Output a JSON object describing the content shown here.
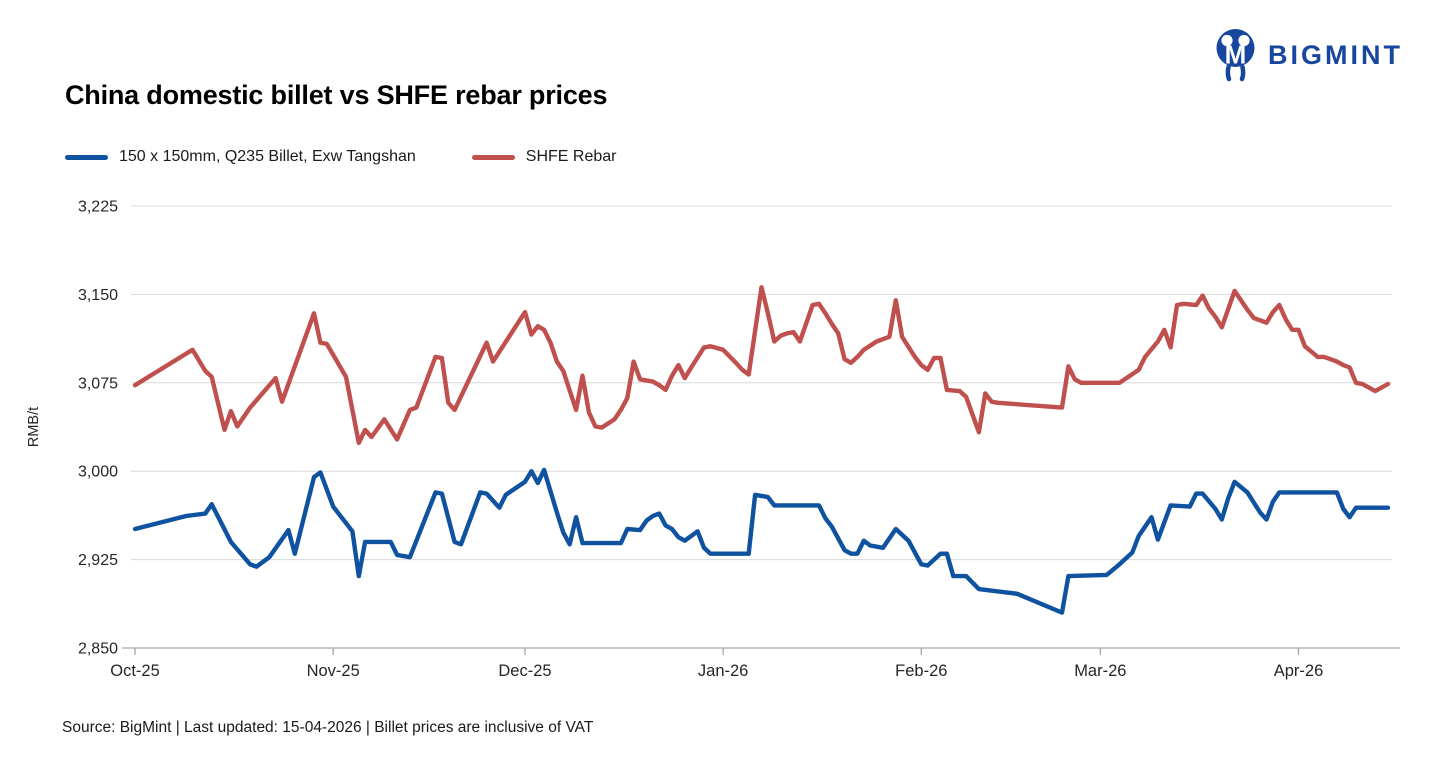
{
  "logo": {
    "text": "BIGMINT",
    "color": "#17469e"
  },
  "header": {
    "title": "China domestic billet vs SHFE rebar prices"
  },
  "legend": [
    {
      "label": "150 x 150mm, Q235 Billet, Exw Tangshan",
      "color": "#0f52a0"
    },
    {
      "label": "SHFE Rebar",
      "color": "#c0504d"
    }
  ],
  "footer": {
    "source_note": "Source: BigMint | Last updated: 15-04-2026 | Billet prices are inclusive of VAT"
  },
  "chart_data": {
    "type": "line",
    "title": "China domestic billet vs SHFE rebar prices",
    "xlabel": "",
    "ylabel": "RMB/t",
    "ylim": [
      2850,
      3225
    ],
    "yticks": [
      2850,
      2925,
      3000,
      3075,
      3150,
      3225
    ],
    "grid": "horizontal",
    "legend_position": "top-left",
    "x_axis": {
      "unit": "days since 01-10-2025",
      "total_days": 196,
      "ticks": [
        {
          "day": 0,
          "label": "Oct-25"
        },
        {
          "day": 31,
          "label": "Nov-25"
        },
        {
          "day": 61,
          "label": "Dec-25"
        },
        {
          "day": 92,
          "label": "Jan-26"
        },
        {
          "day": 123,
          "label": "Feb-26"
        },
        {
          "day": 151,
          "label": "Mar-26"
        },
        {
          "day": 182,
          "label": "Apr-26"
        }
      ]
    },
    "series": [
      {
        "name": "150 x 150mm, Q235 Billet, Exw Tangshan",
        "color": "#0f52a0",
        "points": [
          [
            0,
            2951
          ],
          [
            8,
            2962
          ],
          [
            11,
            2964
          ],
          [
            12,
            2972
          ],
          [
            15,
            2940
          ],
          [
            18,
            2921
          ],
          [
            19,
            2919
          ],
          [
            21,
            2927
          ],
          [
            24,
            2950
          ],
          [
            25,
            2930
          ],
          [
            28,
            2995
          ],
          [
            29,
            2999
          ],
          [
            31,
            2970
          ],
          [
            34,
            2949
          ],
          [
            35,
            2911
          ],
          [
            36,
            2940
          ],
          [
            40,
            2940
          ],
          [
            41,
            2929
          ],
          [
            43,
            2927
          ],
          [
            47,
            2982
          ],
          [
            48,
            2981
          ],
          [
            50,
            2940
          ],
          [
            51,
            2938
          ],
          [
            54,
            2982
          ],
          [
            55,
            2981
          ],
          [
            57,
            2969
          ],
          [
            58,
            2980
          ],
          [
            61,
            2991
          ],
          [
            62,
            3000
          ],
          [
            63,
            2990
          ],
          [
            64,
            3001
          ],
          [
            66,
            2965
          ],
          [
            67,
            2948
          ],
          [
            68,
            2938
          ],
          [
            69,
            2961
          ],
          [
            70,
            2939
          ],
          [
            76,
            2939
          ],
          [
            77,
            2951
          ],
          [
            79,
            2950
          ],
          [
            80,
            2958
          ],
          [
            81,
            2962
          ],
          [
            82,
            2964
          ],
          [
            83,
            2954
          ],
          [
            84,
            2951
          ],
          [
            85,
            2944
          ],
          [
            86,
            2941
          ],
          [
            87,
            2945
          ],
          [
            88,
            2949
          ],
          [
            89,
            2935
          ],
          [
            90,
            2930
          ],
          [
            96,
            2930
          ],
          [
            97,
            2980
          ],
          [
            99,
            2978
          ],
          [
            100,
            2971
          ],
          [
            107,
            2971
          ],
          [
            108,
            2960
          ],
          [
            109,
            2953
          ],
          [
            111,
            2933
          ],
          [
            112,
            2930
          ],
          [
            113,
            2930
          ],
          [
            114,
            2941
          ],
          [
            115,
            2937
          ],
          [
            117,
            2935
          ],
          [
            119,
            2951
          ],
          [
            121,
            2941
          ],
          [
            123,
            2921
          ],
          [
            124,
            2920
          ],
          [
            126,
            2930
          ],
          [
            127,
            2930
          ],
          [
            128,
            2911
          ],
          [
            130,
            2911
          ],
          [
            132,
            2900
          ],
          [
            135,
            2898
          ],
          [
            138,
            2896
          ],
          [
            145,
            2880
          ],
          [
            146,
            2911
          ],
          [
            152,
            2912
          ],
          [
            154,
            2921
          ],
          [
            156,
            2931
          ],
          [
            157,
            2945
          ],
          [
            159,
            2961
          ],
          [
            160,
            2942
          ],
          [
            162,
            2971
          ],
          [
            165,
            2970
          ],
          [
            166,
            2981
          ],
          [
            167,
            2981
          ],
          [
            169,
            2968
          ],
          [
            170,
            2959
          ],
          [
            171,
            2977
          ],
          [
            172,
            2991
          ],
          [
            174,
            2982
          ],
          [
            176,
            2965
          ],
          [
            177,
            2959
          ],
          [
            178,
            2974
          ],
          [
            179,
            2982
          ],
          [
            188,
            2982
          ],
          [
            189,
            2968
          ],
          [
            190,
            2961
          ],
          [
            191,
            2969
          ],
          [
            196,
            2969
          ]
        ]
      },
      {
        "name": "SHFE Rebar",
        "color": "#c0504d",
        "points": [
          [
            0,
            3073
          ],
          [
            9,
            3103
          ],
          [
            11,
            3085
          ],
          [
            12,
            3080
          ],
          [
            14,
            3035
          ],
          [
            15,
            3051
          ],
          [
            16,
            3038
          ],
          [
            18,
            3054
          ],
          [
            22,
            3079
          ],
          [
            23,
            3059
          ],
          [
            28,
            3134
          ],
          [
            29,
            3109
          ],
          [
            30,
            3108
          ],
          [
            33,
            3080
          ],
          [
            35,
            3024
          ],
          [
            36,
            3035
          ],
          [
            37,
            3029
          ],
          [
            39,
            3044
          ],
          [
            41,
            3027
          ],
          [
            43,
            3052
          ],
          [
            44,
            3054
          ],
          [
            47,
            3097
          ],
          [
            48,
            3096
          ],
          [
            49,
            3058
          ],
          [
            50,
            3052
          ],
          [
            55,
            3109
          ],
          [
            56,
            3093
          ],
          [
            61,
            3135
          ],
          [
            62,
            3116
          ],
          [
            63,
            3123
          ],
          [
            64,
            3120
          ],
          [
            65,
            3109
          ],
          [
            66,
            3093
          ],
          [
            67,
            3085
          ],
          [
            69,
            3052
          ],
          [
            70,
            3081
          ],
          [
            71,
            3050
          ],
          [
            72,
            3038
          ],
          [
            73,
            3037
          ],
          [
            75,
            3044
          ],
          [
            76,
            3052
          ],
          [
            77,
            3062
          ],
          [
            78,
            3093
          ],
          [
            79,
            3078
          ],
          [
            81,
            3076
          ],
          [
            82,
            3073
          ],
          [
            83,
            3069
          ],
          [
            84,
            3081
          ],
          [
            85,
            3090
          ],
          [
            86,
            3079
          ],
          [
            87,
            3088
          ],
          [
            89,
            3105
          ],
          [
            90,
            3106
          ],
          [
            92,
            3103
          ],
          [
            94,
            3092
          ],
          [
            95,
            3086
          ],
          [
            96,
            3082
          ],
          [
            98,
            3156
          ],
          [
            99,
            3134
          ],
          [
            100,
            3110
          ],
          [
            101,
            3115
          ],
          [
            102,
            3117
          ],
          [
            103,
            3118
          ],
          [
            104,
            3110
          ],
          [
            106,
            3141
          ],
          [
            107,
            3142
          ],
          [
            108,
            3134
          ],
          [
            109,
            3125
          ],
          [
            110,
            3117
          ],
          [
            111,
            3095
          ],
          [
            112,
            3092
          ],
          [
            113,
            3097
          ],
          [
            114,
            3103
          ],
          [
            116,
            3110
          ],
          [
            118,
            3114
          ],
          [
            119,
            3145
          ],
          [
            120,
            3114
          ],
          [
            122,
            3097
          ],
          [
            123,
            3090
          ],
          [
            124,
            3086
          ],
          [
            125,
            3096
          ],
          [
            126,
            3096
          ],
          [
            127,
            3069
          ],
          [
            129,
            3068
          ],
          [
            130,
            3063
          ],
          [
            132,
            3033
          ],
          [
            133,
            3066
          ],
          [
            134,
            3059
          ],
          [
            135,
            3058
          ],
          [
            145,
            3054
          ],
          [
            146,
            3089
          ],
          [
            147,
            3078
          ],
          [
            148,
            3075
          ],
          [
            154,
            3075
          ],
          [
            157,
            3086
          ],
          [
            158,
            3097
          ],
          [
            160,
            3110
          ],
          [
            161,
            3120
          ],
          [
            162,
            3105
          ],
          [
            163,
            3141
          ],
          [
            164,
            3142
          ],
          [
            166,
            3141
          ],
          [
            167,
            3149
          ],
          [
            168,
            3138
          ],
          [
            169,
            3131
          ],
          [
            170,
            3122
          ],
          [
            172,
            3153
          ],
          [
            174,
            3137
          ],
          [
            175,
            3130
          ],
          [
            176,
            3128
          ],
          [
            177,
            3126
          ],
          [
            178,
            3135
          ],
          [
            179,
            3141
          ],
          [
            180,
            3129
          ],
          [
            181,
            3120
          ],
          [
            182,
            3120
          ],
          [
            183,
            3106
          ],
          [
            185,
            3097
          ],
          [
            186,
            3097
          ],
          [
            187,
            3095
          ],
          [
            188,
            3093
          ],
          [
            189,
            3090
          ],
          [
            190,
            3088
          ],
          [
            191,
            3075
          ],
          [
            192,
            3074
          ],
          [
            194,
            3068
          ],
          [
            196,
            3074
          ]
        ]
      }
    ]
  }
}
